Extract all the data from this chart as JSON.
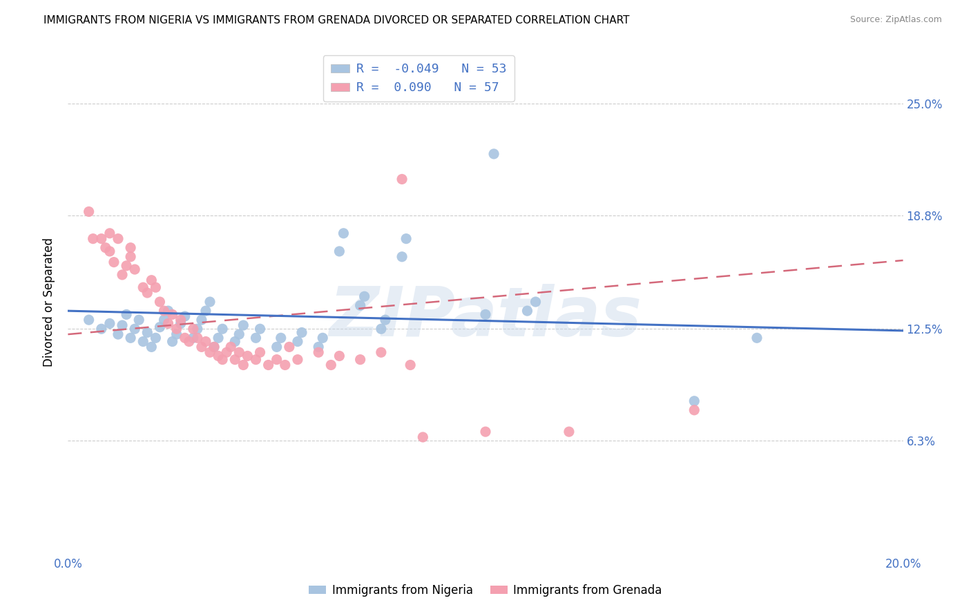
{
  "title": "IMMIGRANTS FROM NIGERIA VS IMMIGRANTS FROM GRENADA DIVORCED OR SEPARATED CORRELATION CHART",
  "source": "Source: ZipAtlas.com",
  "ylabel": "Divorced or Separated",
  "watermark": "ZIPatlas",
  "xlim": [
    0.0,
    0.2
  ],
  "ylim": [
    0.0,
    0.28
  ],
  "yticks": [
    0.063,
    0.125,
    0.188,
    0.25
  ],
  "ytick_labels": [
    "6.3%",
    "12.5%",
    "18.8%",
    "25.0%"
  ],
  "xticks": [
    0.0,
    0.04,
    0.08,
    0.12,
    0.16,
    0.2
  ],
  "xtick_labels": [
    "0.0%",
    "",
    "",
    "",
    "",
    "20.0%"
  ],
  "nigeria_color": "#a8c4e0",
  "grenada_color": "#f4a0b0",
  "nigeria_line_color": "#4472c4",
  "grenada_line_color": "#d4687a",
  "R_nigeria": -0.049,
  "N_nigeria": 53,
  "R_grenada": 0.09,
  "N_grenada": 57,
  "nigeria_scatter": [
    [
      0.005,
      0.13
    ],
    [
      0.008,
      0.125
    ],
    [
      0.01,
      0.128
    ],
    [
      0.012,
      0.122
    ],
    [
      0.013,
      0.127
    ],
    [
      0.014,
      0.133
    ],
    [
      0.015,
      0.12
    ],
    [
      0.016,
      0.125
    ],
    [
      0.017,
      0.13
    ],
    [
      0.018,
      0.118
    ],
    [
      0.019,
      0.123
    ],
    [
      0.02,
      0.115
    ],
    [
      0.021,
      0.12
    ],
    [
      0.022,
      0.126
    ],
    [
      0.023,
      0.13
    ],
    [
      0.024,
      0.135
    ],
    [
      0.025,
      0.118
    ],
    [
      0.026,
      0.122
    ],
    [
      0.027,
      0.128
    ],
    [
      0.028,
      0.132
    ],
    [
      0.03,
      0.12
    ],
    [
      0.031,
      0.125
    ],
    [
      0.032,
      0.13
    ],
    [
      0.033,
      0.135
    ],
    [
      0.034,
      0.14
    ],
    [
      0.035,
      0.115
    ],
    [
      0.036,
      0.12
    ],
    [
      0.037,
      0.125
    ],
    [
      0.04,
      0.118
    ],
    [
      0.041,
      0.122
    ],
    [
      0.042,
      0.127
    ],
    [
      0.045,
      0.12
    ],
    [
      0.046,
      0.125
    ],
    [
      0.05,
      0.115
    ],
    [
      0.051,
      0.12
    ],
    [
      0.055,
      0.118
    ],
    [
      0.056,
      0.123
    ],
    [
      0.06,
      0.115
    ],
    [
      0.061,
      0.12
    ],
    [
      0.065,
      0.168
    ],
    [
      0.066,
      0.178
    ],
    [
      0.07,
      0.138
    ],
    [
      0.071,
      0.143
    ],
    [
      0.075,
      0.125
    ],
    [
      0.076,
      0.13
    ],
    [
      0.08,
      0.165
    ],
    [
      0.081,
      0.175
    ],
    [
      0.1,
      0.133
    ],
    [
      0.102,
      0.222
    ],
    [
      0.11,
      0.135
    ],
    [
      0.112,
      0.14
    ],
    [
      0.15,
      0.085
    ],
    [
      0.165,
      0.12
    ]
  ],
  "grenada_scatter": [
    [
      0.005,
      0.19
    ],
    [
      0.006,
      0.175
    ],
    [
      0.008,
      0.175
    ],
    [
      0.009,
      0.17
    ],
    [
      0.01,
      0.178
    ],
    [
      0.01,
      0.168
    ],
    [
      0.011,
      0.162
    ],
    [
      0.012,
      0.175
    ],
    [
      0.013,
      0.155
    ],
    [
      0.014,
      0.16
    ],
    [
      0.015,
      0.17
    ],
    [
      0.015,
      0.165
    ],
    [
      0.016,
      0.158
    ],
    [
      0.018,
      0.148
    ],
    [
      0.019,
      0.145
    ],
    [
      0.02,
      0.152
    ],
    [
      0.021,
      0.148
    ],
    [
      0.022,
      0.14
    ],
    [
      0.023,
      0.135
    ],
    [
      0.024,
      0.128
    ],
    [
      0.025,
      0.133
    ],
    [
      0.026,
      0.125
    ],
    [
      0.027,
      0.13
    ],
    [
      0.028,
      0.12
    ],
    [
      0.029,
      0.118
    ],
    [
      0.03,
      0.125
    ],
    [
      0.031,
      0.12
    ],
    [
      0.032,
      0.115
    ],
    [
      0.033,
      0.118
    ],
    [
      0.034,
      0.112
    ],
    [
      0.035,
      0.115
    ],
    [
      0.036,
      0.11
    ],
    [
      0.037,
      0.108
    ],
    [
      0.038,
      0.112
    ],
    [
      0.039,
      0.115
    ],
    [
      0.04,
      0.108
    ],
    [
      0.041,
      0.112
    ],
    [
      0.042,
      0.105
    ],
    [
      0.043,
      0.11
    ],
    [
      0.045,
      0.108
    ],
    [
      0.046,
      0.112
    ],
    [
      0.048,
      0.105
    ],
    [
      0.05,
      0.108
    ],
    [
      0.052,
      0.105
    ],
    [
      0.053,
      0.115
    ],
    [
      0.055,
      0.108
    ],
    [
      0.06,
      0.112
    ],
    [
      0.063,
      0.105
    ],
    [
      0.065,
      0.11
    ],
    [
      0.07,
      0.108
    ],
    [
      0.075,
      0.112
    ],
    [
      0.08,
      0.208
    ],
    [
      0.082,
      0.105
    ],
    [
      0.085,
      0.065
    ],
    [
      0.1,
      0.068
    ],
    [
      0.12,
      0.068
    ],
    [
      0.15,
      0.08
    ]
  ]
}
